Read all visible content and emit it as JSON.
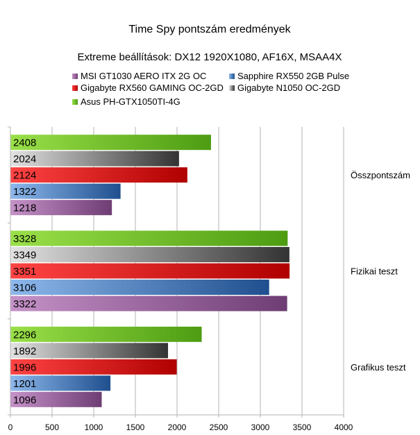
{
  "chart_data": {
    "type": "bar",
    "orientation": "horizontal",
    "title": "Time Spy pontszám eredmények",
    "subtitle": "Extreme beállítások: DX12 1920X1080, AF16X, MSAA4X",
    "xlabel": "",
    "ylabel": "",
    "xlim": [
      0,
      4000
    ],
    "x_ticks": [
      "0",
      "500",
      "1000",
      "1500",
      "2000",
      "2500",
      "3000",
      "3500",
      "4000"
    ],
    "grid": "vertical",
    "legend_position": "top",
    "categories": [
      "Összpontszám",
      "Fizikai teszt",
      "Grafikus teszt"
    ],
    "series": [
      {
        "name": "MSI GT1030 AERO ITX 2G OC",
        "color_light": "#c592c8",
        "color_dark": "#6e3d73",
        "values": [
          1218,
          3322,
          1096
        ],
        "labels": [
          "1218",
          "3322",
          "1096"
        ]
      },
      {
        "name": "Sapphire RX550 2GB Pulse",
        "color_light": "#8eb8ec",
        "color_dark": "#1f4f8e",
        "values": [
          1322,
          3106,
          1201
        ],
        "labels": [
          "1322",
          "3106",
          "1201"
        ]
      },
      {
        "name": "Gigabyte RX560 GAMING OC-2GD",
        "color_light": "#ff4444",
        "color_dark": "#b00000",
        "values": [
          2124,
          3351,
          1996
        ],
        "labels": [
          "2124",
          "3351",
          "1996"
        ]
      },
      {
        "name": "Gigabyte N1050 OC-2GD",
        "color_light": "#e2e2e2",
        "color_dark": "#333333",
        "values": [
          2024,
          3349,
          1892
        ],
        "labels": [
          "2024",
          "3349",
          "1892"
        ]
      },
      {
        "name": "Asus PH-GTX1050TI-4G",
        "color_light": "#9ae049",
        "color_dark": "#4d9c12",
        "values": [
          2408,
          3328,
          2296
        ],
        "labels": [
          "2408",
          "3328",
          "2296"
        ]
      }
    ]
  }
}
